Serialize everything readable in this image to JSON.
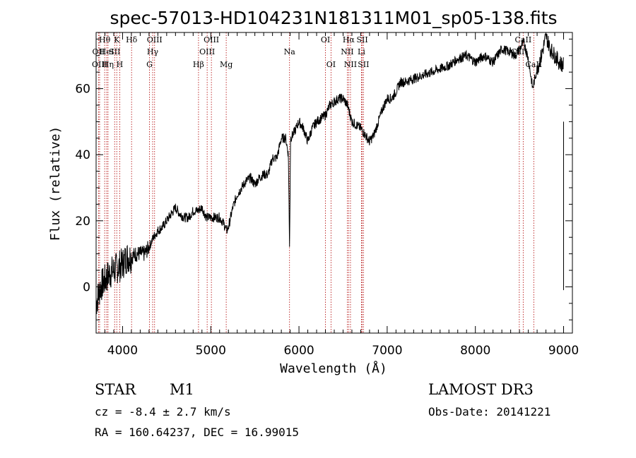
{
  "chart_data": {
    "type": "line",
    "title": "spec-57013-HD104231N181311M01_sp05-138.fits",
    "xlabel": "Wavelength (Å)",
    "ylabel": "Flux (relative)",
    "xlim": [
      3700,
      9100
    ],
    "ylim": [
      -14,
      77
    ],
    "xticks": [
      4000,
      5000,
      6000,
      7000,
      8000,
      9000
    ],
    "yticks": [
      0,
      20,
      40,
      60
    ],
    "grid": false,
    "series": [
      {
        "x": [
          3700,
          3750,
          3800,
          3850,
          3900,
          3950,
          4000,
          4050,
          4100,
          4150,
          4200,
          4250,
          4300,
          4350,
          4400,
          4450,
          4500,
          4550,
          4600,
          4650,
          4700,
          4750,
          4800,
          4850,
          4900,
          4950,
          5000,
          5050,
          5100,
          5150,
          5180,
          5200,
          5250,
          5300,
          5350,
          5400,
          5450,
          5500,
          5550,
          5600,
          5650,
          5700,
          5750,
          5800,
          5850,
          5880,
          5893,
          5905,
          5950,
          6000,
          6050,
          6100,
          6150,
          6200,
          6250,
          6300,
          6350,
          6400,
          6450,
          6500,
          6550,
          6600,
          6650,
          6700,
          6750,
          6800,
          6850,
          6900,
          6950,
          7000,
          7050,
          7100,
          7150,
          7200,
          7300,
          7400,
          7500,
          7600,
          7700,
          7800,
          7900,
          8000,
          8100,
          8200,
          8300,
          8400,
          8450,
          8500,
          8550,
          8600,
          8650,
          8665,
          8700,
          8750,
          8800,
          8850,
          8900,
          8950,
          9000
        ],
        "y": [
          -5,
          0,
          2,
          4,
          5,
          6,
          7,
          9,
          9,
          10,
          10,
          10,
          12,
          15,
          17,
          18,
          20,
          22,
          24,
          22,
          21,
          21,
          23,
          23,
          24,
          21,
          21,
          21,
          21,
          19,
          17,
          18,
          24,
          28,
          30,
          32,
          33,
          31,
          33,
          34,
          34,
          39,
          39,
          45,
          45,
          40,
          12,
          45,
          47,
          50,
          48,
          44,
          48,
          50,
          51,
          52,
          55,
          56,
          57,
          57,
          55,
          50,
          49,
          48,
          46,
          44,
          46,
          50,
          54,
          57,
          57,
          59,
          62,
          62,
          63,
          64,
          65,
          66,
          67,
          69,
          70,
          68,
          70,
          68,
          72,
          71,
          70,
          72,
          74,
          69,
          60,
          62,
          66,
          70,
          76,
          72,
          70,
          68,
          67
        ]
      }
    ],
    "lines": [
      {
        "name": "Hθ",
        "w": 3797,
        "row": 1
      },
      {
        "name": "OII",
        "w": 3727,
        "row": 2
      },
      {
        "name": "OIII",
        "w": 3740,
        "row": 3
      },
      {
        "name": "HeI",
        "w": 3820,
        "row": 2
      },
      {
        "name": "Hη",
        "w": 3835,
        "row": 3
      },
      {
        "name": "K",
        "w": 3934,
        "row": 1
      },
      {
        "name": "SII",
        "w": 3910,
        "row": 2
      },
      {
        "name": "H",
        "w": 3968,
        "row": 3
      },
      {
        "name": "Hδ",
        "w": 4102,
        "row": 1
      },
      {
        "name": "OIII",
        "w": 4363,
        "row": 1
      },
      {
        "name": "Hγ",
        "w": 4341,
        "row": 2
      },
      {
        "name": "G",
        "w": 4305,
        "row": 3
      },
      {
        "name": "Hβ",
        "w": 4861,
        "row": 3
      },
      {
        "name": "OIII",
        "w": 5007,
        "row": 1
      },
      {
        "name": "OIII",
        "w": 4959,
        "row": 2
      },
      {
        "name": "Mg",
        "w": 5175,
        "row": 3
      },
      {
        "name": "Na",
        "w": 5893,
        "row": 2
      },
      {
        "name": "OI",
        "w": 6300,
        "row": 1
      },
      {
        "name": "OI",
        "w": 6363,
        "row": 3
      },
      {
        "name": "Hα",
        "w": 6563,
        "row": 1
      },
      {
        "name": "NII",
        "w": 6548,
        "row": 2
      },
      {
        "name": "NII",
        "w": 6584,
        "row": 3
      },
      {
        "name": "SII",
        "w": 6717,
        "row": 1
      },
      {
        "name": "Li",
        "w": 6708,
        "row": 2
      },
      {
        "name": "SII",
        "w": 6731,
        "row": 3
      },
      {
        "name": "CaII",
        "w": 8542,
        "row": 1
      },
      {
        "name": "CaII",
        "w": 8498,
        "row": 2
      },
      {
        "name": "CaII",
        "w": 8662,
        "row": 3
      }
    ]
  },
  "info": {
    "class": "STAR",
    "subclass": "M1",
    "cz": "cz = -8.4 ± 2.7 km/s",
    "radec": "RA = 160.64237, DEC =  16.99015",
    "survey": "LAMOST DR3",
    "obsdate": "Obs-Date: 20141221"
  },
  "colors": {
    "axes": "#000000",
    "spectrum": "#000000",
    "line_markers": "#b00000"
  }
}
